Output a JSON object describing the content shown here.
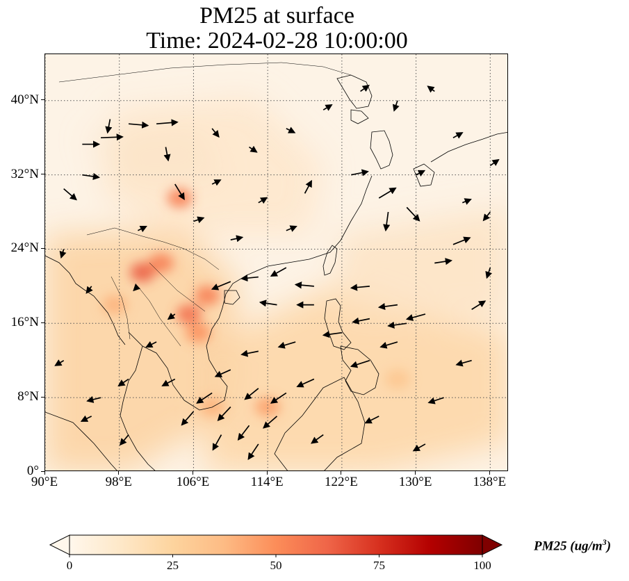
{
  "title": {
    "line1": "PM25 at surface",
    "line2": "Time: 2024-02-28 10:00:00"
  },
  "map": {
    "lon_range": [
      90,
      140
    ],
    "lat_range": [
      0,
      45
    ],
    "gridlines": true,
    "lon_ticks": [
      {
        "value": 90,
        "label": "90°E"
      },
      {
        "value": 98,
        "label": "98°E"
      },
      {
        "value": 106,
        "label": "106°E"
      },
      {
        "value": 114,
        "label": "114°E"
      },
      {
        "value": 122,
        "label": "122°E"
      },
      {
        "value": 130,
        "label": "130°E"
      },
      {
        "value": 138,
        "label": "138°E"
      }
    ],
    "lat_ticks": [
      {
        "value": 0,
        "label": "0°"
      },
      {
        "value": 8,
        "label": "8°N"
      },
      {
        "value": 16,
        "label": "16°N"
      },
      {
        "value": 24,
        "label": "24°N"
      },
      {
        "value": 32,
        "label": "32°N"
      },
      {
        "value": 40,
        "label": "40°N"
      }
    ]
  },
  "colorbar": {
    "label": "PM25 (ug/m",
    "label_superscript": "3",
    "label_end": ")",
    "min": 0,
    "max": 100,
    "extend": "both",
    "ticks": [
      {
        "value": 0,
        "label": "0"
      },
      {
        "value": 25,
        "label": "25"
      },
      {
        "value": 50,
        "label": "50"
      },
      {
        "value": 75,
        "label": "75"
      },
      {
        "value": 100,
        "label": "100"
      }
    ],
    "colormap": "OrRd",
    "colors": [
      "#fff7ec",
      "#fee8c8",
      "#fdd49e",
      "#fdbb84",
      "#fc8d59",
      "#ef6548",
      "#d7301f",
      "#b30000",
      "#7f0000"
    ]
  },
  "pollution_hotspots": [
    {
      "lon": 104.5,
      "lat": 29.5,
      "value": 55
    },
    {
      "lon": 100.5,
      "lat": 21.5,
      "value": 65
    },
    {
      "lon": 102.5,
      "lat": 22.5,
      "value": 55
    },
    {
      "lon": 105.5,
      "lat": 17.0,
      "value": 60
    },
    {
      "lon": 107.5,
      "lat": 19.0,
      "value": 55
    },
    {
      "lon": 106.5,
      "lat": 15.0,
      "value": 50
    },
    {
      "lon": 97.5,
      "lat": 18.0,
      "value": 40
    },
    {
      "lon": 114.0,
      "lat": 7.0,
      "value": 45
    },
    {
      "lon": 108.0,
      "lat": 7.0,
      "value": 40
    },
    {
      "lon": 128.0,
      "lat": 10.0,
      "value": 32
    }
  ],
  "wind_vectors": [
    {
      "lon": 96,
      "lat": 36,
      "u": 2.6,
      "v": 0.1
    },
    {
      "lon": 97,
      "lat": 38,
      "u": -0.3,
      "v": -1.6
    },
    {
      "lon": 99,
      "lat": 37.5,
      "u": 2.3,
      "v": -0.2
    },
    {
      "lon": 102,
      "lat": 37.5,
      "u": 2.5,
      "v": 0.2
    },
    {
      "lon": 94,
      "lat": 35.3,
      "u": 2.0,
      "v": 0.0
    },
    {
      "lon": 92,
      "lat": 30.5,
      "u": 1.5,
      "v": -1.3
    },
    {
      "lon": 94,
      "lat": 32,
      "u": 2.0,
      "v": -0.3
    },
    {
      "lon": 103,
      "lat": 35,
      "u": 0.3,
      "v": -1.6
    },
    {
      "lon": 104,
      "lat": 31,
      "u": 1.1,
      "v": -1.8
    },
    {
      "lon": 118,
      "lat": 30,
      "u": 0.8,
      "v": 1.5
    },
    {
      "lon": 123,
      "lat": 32,
      "u": 2.0,
      "v": 0.4
    },
    {
      "lon": 126,
      "lat": 29.5,
      "u": 2.0,
      "v": 1.2
    },
    {
      "lon": 127,
      "lat": 28,
      "u": -0.3,
      "v": -2.2
    },
    {
      "lon": 129,
      "lat": 28.5,
      "u": 1.5,
      "v": -1.6
    },
    {
      "lon": 134,
      "lat": 24.5,
      "u": 2.0,
      "v": 0.8
    },
    {
      "lon": 132,
      "lat": 22.5,
      "u": 2.0,
      "v": 0.3
    },
    {
      "lon": 125,
      "lat": 20,
      "u": -2.2,
      "v": -0.2
    },
    {
      "lon": 128,
      "lat": 18,
      "u": -2.2,
      "v": -0.3
    },
    {
      "lon": 131,
      "lat": 17,
      "u": -2.2,
      "v": -0.6
    },
    {
      "lon": 136,
      "lat": 17.5,
      "u": 1.6,
      "v": 1.0
    },
    {
      "lon": 129,
      "lat": 16,
      "u": -2.2,
      "v": -0.3
    },
    {
      "lon": 125,
      "lat": 16.5,
      "u": -2.0,
      "v": -0.4
    },
    {
      "lon": 119,
      "lat": 18,
      "u": -2.0,
      "v": 0.0
    },
    {
      "lon": 115,
      "lat": 18,
      "u": -2.0,
      "v": 0.3
    },
    {
      "lon": 119,
      "lat": 20,
      "u": -2.2,
      "v": 0.2
    },
    {
      "lon": 110,
      "lat": 20.5,
      "u": -2.2,
      "v": -0.9
    },
    {
      "lon": 113,
      "lat": 21,
      "u": -2.0,
      "v": -0.2
    },
    {
      "lon": 116,
      "lat": 22,
      "u": -1.8,
      "v": -1.0
    },
    {
      "lon": 122,
      "lat": 15,
      "u": -2.2,
      "v": -0.3
    },
    {
      "lon": 128,
      "lat": 14,
      "u": -2.0,
      "v": -0.6
    },
    {
      "lon": 125,
      "lat": 12,
      "u": -2.2,
      "v": -0.7
    },
    {
      "lon": 117,
      "lat": 14,
      "u": -2.0,
      "v": -0.6
    },
    {
      "lon": 113,
      "lat": 13,
      "u": -2.0,
      "v": -0.4
    },
    {
      "lon": 110,
      "lat": 11,
      "u": -1.8,
      "v": -0.8
    },
    {
      "lon": 113,
      "lat": 9,
      "u": -1.6,
      "v": -1.3
    },
    {
      "lon": 116,
      "lat": 8.5,
      "u": -1.8,
      "v": -1.2
    },
    {
      "lon": 119,
      "lat": 10,
      "u": -2.0,
      "v": -0.9
    },
    {
      "lon": 110,
      "lat": 7,
      "u": -1.5,
      "v": -1.6
    },
    {
      "lon": 112,
      "lat": 5,
      "u": -1.3,
      "v": -1.7
    },
    {
      "lon": 115,
      "lat": 6,
      "u": -1.6,
      "v": -1.4
    },
    {
      "lon": 108,
      "lat": 8.5,
      "u": -1.8,
      "v": -1.2
    },
    {
      "lon": 106,
      "lat": 6.5,
      "u": -1.4,
      "v": -1.6
    },
    {
      "lon": 113,
      "lat": 3,
      "u": -1.2,
      "v": -1.8
    },
    {
      "lon": 109,
      "lat": 4,
      "u": -1.0,
      "v": -1.8
    },
    {
      "lon": 104,
      "lat": 10,
      "u": -1.5,
      "v": -0.8
    },
    {
      "lon": 102,
      "lat": 14,
      "u": -1.2,
      "v": -0.6
    },
    {
      "lon": 104,
      "lat": 17,
      "u": -0.8,
      "v": -0.6
    },
    {
      "lon": 100,
      "lat": 20,
      "u": -0.5,
      "v": -0.5
    },
    {
      "lon": 100,
      "lat": 26,
      "u": 1.0,
      "v": 0.5
    },
    {
      "lon": 106,
      "lat": 27,
      "u": 1.2,
      "v": 0.4
    },
    {
      "lon": 110,
      "lat": 25,
      "u": 1.4,
      "v": 0.3
    },
    {
      "lon": 113,
      "lat": 29,
      "u": 1.0,
      "v": 0.6
    },
    {
      "lon": 116,
      "lat": 26,
      "u": 1.2,
      "v": 0.5
    },
    {
      "lon": 108,
      "lat": 31,
      "u": 1.0,
      "v": 0.5
    },
    {
      "lon": 108,
      "lat": 37,
      "u": 0.8,
      "v": -1.0
    },
    {
      "lon": 112,
      "lat": 35,
      "u": 0.9,
      "v": -0.6
    },
    {
      "lon": 116,
      "lat": 37,
      "u": 1.0,
      "v": -0.5
    },
    {
      "lon": 120,
      "lat": 39,
      "u": 1.0,
      "v": 0.6
    },
    {
      "lon": 124,
      "lat": 41,
      "u": 1.0,
      "v": 0.7
    },
    {
      "lon": 128,
      "lat": 40,
      "u": -0.4,
      "v": -1.2
    },
    {
      "lon": 134,
      "lat": 36,
      "u": 1.1,
      "v": 0.6
    },
    {
      "lon": 138,
      "lat": 33,
      "u": 1.0,
      "v": 0.7
    },
    {
      "lon": 135,
      "lat": 29,
      "u": 1.0,
      "v": 0.4
    },
    {
      "lon": 130,
      "lat": 32,
      "u": 1.0,
      "v": 0.5
    },
    {
      "lon": 92,
      "lat": 24,
      "u": -0.3,
      "v": -1.0
    },
    {
      "lon": 95,
      "lat": 20,
      "u": -0.6,
      "v": -0.8
    },
    {
      "lon": 92,
      "lat": 12,
      "u": -1.0,
      "v": -0.6
    },
    {
      "lon": 95,
      "lat": 6,
      "u": -1.2,
      "v": -0.6
    },
    {
      "lon": 99,
      "lat": 4,
      "u": -1.0,
      "v": -1.2
    },
    {
      "lon": 96,
      "lat": 8,
      "u": -1.6,
      "v": -0.4
    },
    {
      "lon": 99,
      "lat": 10,
      "u": -1.2,
      "v": -0.8
    },
    {
      "lon": 120,
      "lat": 4,
      "u": -1.4,
      "v": -1.0
    },
    {
      "lon": 126,
      "lat": 6,
      "u": -1.6,
      "v": -0.8
    },
    {
      "lon": 133,
      "lat": 8,
      "u": -1.8,
      "v": -0.6
    },
    {
      "lon": 131,
      "lat": 3,
      "u": -1.4,
      "v": -0.8
    },
    {
      "lon": 136,
      "lat": 12,
      "u": -1.8,
      "v": -0.5
    },
    {
      "lon": 138,
      "lat": 22,
      "u": -0.4,
      "v": -1.2
    },
    {
      "lon": 138,
      "lat": 28,
      "u": -0.8,
      "v": -1.0
    },
    {
      "lon": 132,
      "lat": 41,
      "u": -0.8,
      "v": 0.6
    }
  ]
}
